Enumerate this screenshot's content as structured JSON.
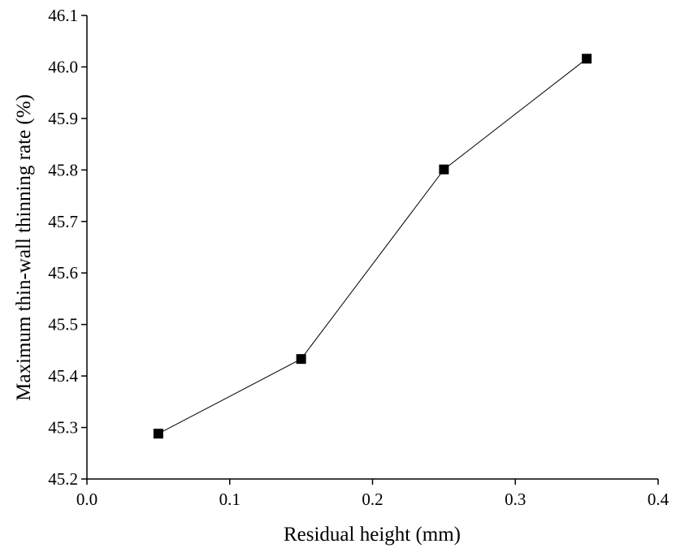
{
  "chart_data": {
    "type": "line",
    "title": "",
    "xlabel": "Residual height (mm)",
    "ylabel": "Maximum thin-wall thinning rate (%)",
    "xlim": [
      0.0,
      0.4
    ],
    "ylim": [
      45.2,
      46.1
    ],
    "xticks": [
      "0.0",
      "0.1",
      "0.2",
      "0.3",
      "0.4"
    ],
    "yticks": [
      "45.2",
      "45.3",
      "45.4",
      "45.5",
      "45.6",
      "45.7",
      "45.8",
      "45.9",
      "46.0",
      "46.1"
    ],
    "grid": false,
    "marker": "square",
    "line_color": "#000000",
    "marker_color": "#000000",
    "series": [
      {
        "x": [
          0.05,
          0.15,
          0.25,
          0.35
        ],
        "y": [
          45.288,
          45.433,
          45.801,
          46.016
        ]
      }
    ]
  }
}
